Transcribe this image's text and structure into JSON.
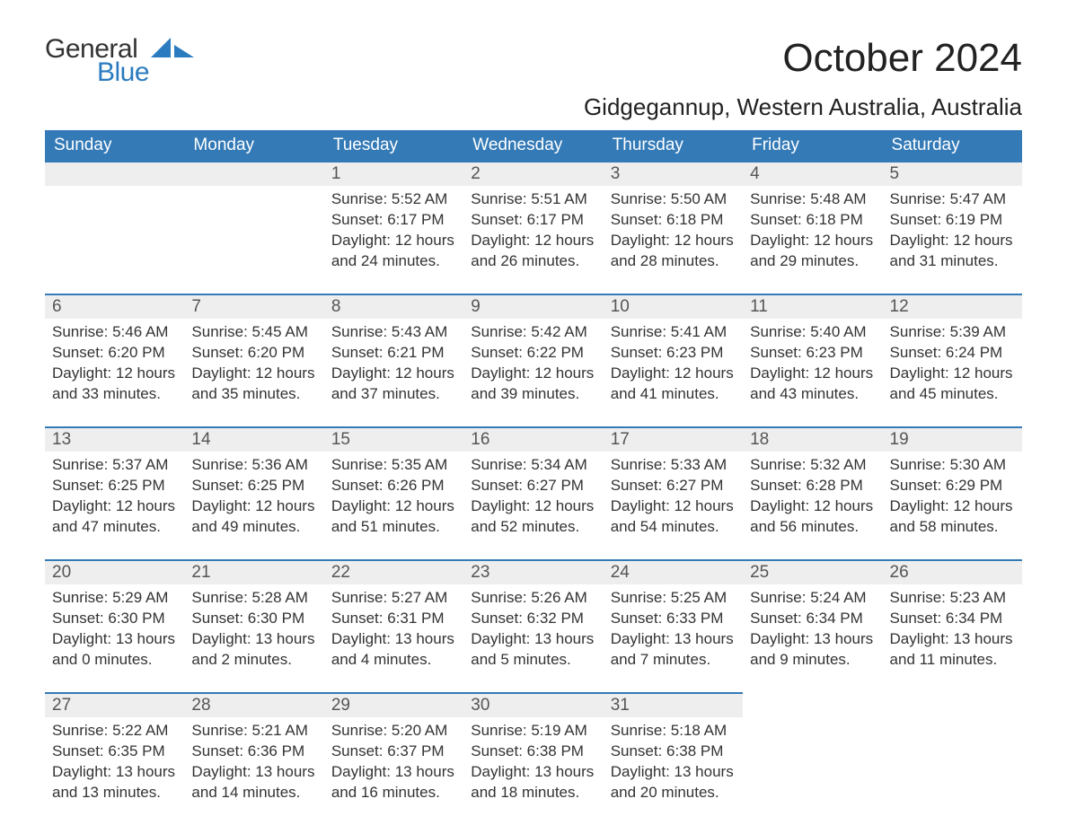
{
  "logo": {
    "word1": "General",
    "word2": "Blue"
  },
  "title": "October 2024",
  "location": "Gidgegannup, Western Australia, Australia",
  "colors": {
    "header_bg": "#337ab7",
    "header_text": "#ffffff",
    "daynum_bg": "#eeeeee",
    "daynum_border_top": "#337ab7",
    "body_text": "#333333",
    "logo_blue": "#2a7bbf",
    "page_bg": "#ffffff"
  },
  "typography": {
    "title_fontsize": 44,
    "location_fontsize": 26,
    "weekday_fontsize": 19,
    "daynum_fontsize": 19,
    "body_fontsize": 17
  },
  "weekdays": [
    "Sunday",
    "Monday",
    "Tuesday",
    "Wednesday",
    "Thursday",
    "Friday",
    "Saturday"
  ],
  "weeks": [
    [
      null,
      null,
      {
        "n": "1",
        "sunrise": "Sunrise: 5:52 AM",
        "sunset": "Sunset: 6:17 PM",
        "d1": "Daylight: 12 hours",
        "d2": "and 24 minutes."
      },
      {
        "n": "2",
        "sunrise": "Sunrise: 5:51 AM",
        "sunset": "Sunset: 6:17 PM",
        "d1": "Daylight: 12 hours",
        "d2": "and 26 minutes."
      },
      {
        "n": "3",
        "sunrise": "Sunrise: 5:50 AM",
        "sunset": "Sunset: 6:18 PM",
        "d1": "Daylight: 12 hours",
        "d2": "and 28 minutes."
      },
      {
        "n": "4",
        "sunrise": "Sunrise: 5:48 AM",
        "sunset": "Sunset: 6:18 PM",
        "d1": "Daylight: 12 hours",
        "d2": "and 29 minutes."
      },
      {
        "n": "5",
        "sunrise": "Sunrise: 5:47 AM",
        "sunset": "Sunset: 6:19 PM",
        "d1": "Daylight: 12 hours",
        "d2": "and 31 minutes."
      }
    ],
    [
      {
        "n": "6",
        "sunrise": "Sunrise: 5:46 AM",
        "sunset": "Sunset: 6:20 PM",
        "d1": "Daylight: 12 hours",
        "d2": "and 33 minutes."
      },
      {
        "n": "7",
        "sunrise": "Sunrise: 5:45 AM",
        "sunset": "Sunset: 6:20 PM",
        "d1": "Daylight: 12 hours",
        "d2": "and 35 minutes."
      },
      {
        "n": "8",
        "sunrise": "Sunrise: 5:43 AM",
        "sunset": "Sunset: 6:21 PM",
        "d1": "Daylight: 12 hours",
        "d2": "and 37 minutes."
      },
      {
        "n": "9",
        "sunrise": "Sunrise: 5:42 AM",
        "sunset": "Sunset: 6:22 PM",
        "d1": "Daylight: 12 hours",
        "d2": "and 39 minutes."
      },
      {
        "n": "10",
        "sunrise": "Sunrise: 5:41 AM",
        "sunset": "Sunset: 6:23 PM",
        "d1": "Daylight: 12 hours",
        "d2": "and 41 minutes."
      },
      {
        "n": "11",
        "sunrise": "Sunrise: 5:40 AM",
        "sunset": "Sunset: 6:23 PM",
        "d1": "Daylight: 12 hours",
        "d2": "and 43 minutes."
      },
      {
        "n": "12",
        "sunrise": "Sunrise: 5:39 AM",
        "sunset": "Sunset: 6:24 PM",
        "d1": "Daylight: 12 hours",
        "d2": "and 45 minutes."
      }
    ],
    [
      {
        "n": "13",
        "sunrise": "Sunrise: 5:37 AM",
        "sunset": "Sunset: 6:25 PM",
        "d1": "Daylight: 12 hours",
        "d2": "and 47 minutes."
      },
      {
        "n": "14",
        "sunrise": "Sunrise: 5:36 AM",
        "sunset": "Sunset: 6:25 PM",
        "d1": "Daylight: 12 hours",
        "d2": "and 49 minutes."
      },
      {
        "n": "15",
        "sunrise": "Sunrise: 5:35 AM",
        "sunset": "Sunset: 6:26 PM",
        "d1": "Daylight: 12 hours",
        "d2": "and 51 minutes."
      },
      {
        "n": "16",
        "sunrise": "Sunrise: 5:34 AM",
        "sunset": "Sunset: 6:27 PM",
        "d1": "Daylight: 12 hours",
        "d2": "and 52 minutes."
      },
      {
        "n": "17",
        "sunrise": "Sunrise: 5:33 AM",
        "sunset": "Sunset: 6:27 PM",
        "d1": "Daylight: 12 hours",
        "d2": "and 54 minutes."
      },
      {
        "n": "18",
        "sunrise": "Sunrise: 5:32 AM",
        "sunset": "Sunset: 6:28 PM",
        "d1": "Daylight: 12 hours",
        "d2": "and 56 minutes."
      },
      {
        "n": "19",
        "sunrise": "Sunrise: 5:30 AM",
        "sunset": "Sunset: 6:29 PM",
        "d1": "Daylight: 12 hours",
        "d2": "and 58 minutes."
      }
    ],
    [
      {
        "n": "20",
        "sunrise": "Sunrise: 5:29 AM",
        "sunset": "Sunset: 6:30 PM",
        "d1": "Daylight: 13 hours",
        "d2": "and 0 minutes."
      },
      {
        "n": "21",
        "sunrise": "Sunrise: 5:28 AM",
        "sunset": "Sunset: 6:30 PM",
        "d1": "Daylight: 13 hours",
        "d2": "and 2 minutes."
      },
      {
        "n": "22",
        "sunrise": "Sunrise: 5:27 AM",
        "sunset": "Sunset: 6:31 PM",
        "d1": "Daylight: 13 hours",
        "d2": "and 4 minutes."
      },
      {
        "n": "23",
        "sunrise": "Sunrise: 5:26 AM",
        "sunset": "Sunset: 6:32 PM",
        "d1": "Daylight: 13 hours",
        "d2": "and 5 minutes."
      },
      {
        "n": "24",
        "sunrise": "Sunrise: 5:25 AM",
        "sunset": "Sunset: 6:33 PM",
        "d1": "Daylight: 13 hours",
        "d2": "and 7 minutes."
      },
      {
        "n": "25",
        "sunrise": "Sunrise: 5:24 AM",
        "sunset": "Sunset: 6:34 PM",
        "d1": "Daylight: 13 hours",
        "d2": "and 9 minutes."
      },
      {
        "n": "26",
        "sunrise": "Sunrise: 5:23 AM",
        "sunset": "Sunset: 6:34 PM",
        "d1": "Daylight: 13 hours",
        "d2": "and 11 minutes."
      }
    ],
    [
      {
        "n": "27",
        "sunrise": "Sunrise: 5:22 AM",
        "sunset": "Sunset: 6:35 PM",
        "d1": "Daylight: 13 hours",
        "d2": "and 13 minutes."
      },
      {
        "n": "28",
        "sunrise": "Sunrise: 5:21 AM",
        "sunset": "Sunset: 6:36 PM",
        "d1": "Daylight: 13 hours",
        "d2": "and 14 minutes."
      },
      {
        "n": "29",
        "sunrise": "Sunrise: 5:20 AM",
        "sunset": "Sunset: 6:37 PM",
        "d1": "Daylight: 13 hours",
        "d2": "and 16 minutes."
      },
      {
        "n": "30",
        "sunrise": "Sunrise: 5:19 AM",
        "sunset": "Sunset: 6:38 PM",
        "d1": "Daylight: 13 hours",
        "d2": "and 18 minutes."
      },
      {
        "n": "31",
        "sunrise": "Sunrise: 5:18 AM",
        "sunset": "Sunset: 6:38 PM",
        "d1": "Daylight: 13 hours",
        "d2": "and 20 minutes."
      },
      null,
      null
    ]
  ]
}
